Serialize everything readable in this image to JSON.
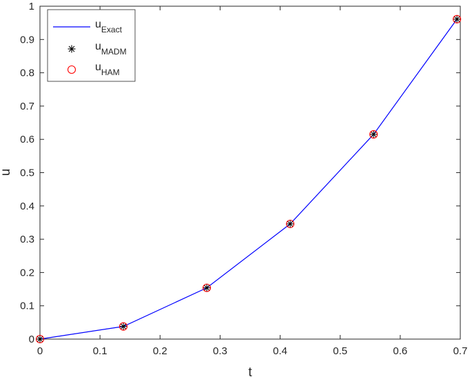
{
  "chart_data": {
    "type": "line",
    "xlabel": "t",
    "ylabel": "u",
    "xlim": [
      0,
      0.7
    ],
    "ylim": [
      0,
      1
    ],
    "xticks": [
      0,
      0.1,
      0.2,
      0.3,
      0.4,
      0.5,
      0.6,
      0.7
    ],
    "xtick_labels": [
      "0",
      "0.1",
      "0.2",
      "0.3",
      "0.4",
      "0.5",
      "0.6",
      "0.7"
    ],
    "yticks": [
      0,
      0.1,
      0.2,
      0.3,
      0.4,
      0.5,
      0.6,
      0.7,
      0.8,
      0.9,
      1
    ],
    "ytick_labels": [
      "0",
      "0.1",
      "0.2",
      "0.3",
      "0.4",
      "0.5",
      "0.6",
      "0.7",
      "0.8",
      "0.9",
      "1"
    ],
    "grid": false,
    "legend_position": "top-left",
    "x": [
      0,
      0.1389,
      0.2778,
      0.4167,
      0.5556,
      0.6944
    ],
    "series": [
      {
        "name": "u",
        "subscript": "Exact",
        "style": "line",
        "color": "#0000ff",
        "values": [
          0,
          0.038,
          0.154,
          0.346,
          0.615,
          0.961
        ]
      },
      {
        "name": "u",
        "subscript": "MADM",
        "style": "asterisk",
        "color": "#000000",
        "values": [
          0,
          0.038,
          0.154,
          0.346,
          0.615,
          0.961
        ]
      },
      {
        "name": "u",
        "subscript": "HAM",
        "style": "circle",
        "color": "#ff0000",
        "values": [
          0,
          0.038,
          0.154,
          0.346,
          0.615,
          0.961
        ]
      }
    ]
  }
}
